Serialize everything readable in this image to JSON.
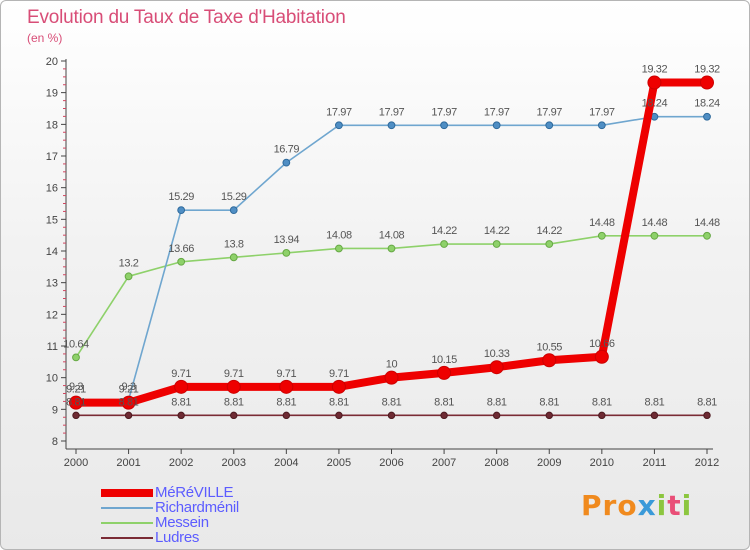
{
  "title": "Evolution du Taux de Taxe d'Habitation",
  "subtitle": "(en %)",
  "logo": {
    "text": "Proxiti",
    "letters": [
      "P",
      "r",
      "o",
      "x",
      "i",
      "t",
      "i"
    ],
    "colors": [
      "#f08a1e",
      "#f08a1e",
      "#f08a1e",
      "#3a9ad9",
      "#8cc63f",
      "#e94e77",
      "#8cc63f"
    ]
  },
  "chart_data": {
    "type": "line",
    "title": "Evolution du Taux de Taxe d'Habitation",
    "ylabel": "(en %)",
    "xlabel": "",
    "ylim": [
      8,
      20
    ],
    "yticks": [
      8,
      9,
      10,
      11,
      12,
      13,
      14,
      15,
      16,
      17,
      18,
      19,
      20
    ],
    "x": [
      2000,
      2001,
      2002,
      2003,
      2004,
      2005,
      2006,
      2007,
      2008,
      2009,
      2010,
      2011,
      2012
    ],
    "grid": false,
    "legend": "bottom-left",
    "series": [
      {
        "name": "Ludres",
        "color": "#7a2b35",
        "values": [
          8.81,
          8.81,
          8.81,
          8.81,
          8.81,
          8.81,
          8.81,
          8.81,
          8.81,
          8.81,
          8.81,
          8.81,
          8.81
        ]
      },
      {
        "name": "Messein",
        "color": "#8ed16a",
        "values": [
          10.64,
          13.2,
          13.66,
          13.8,
          13.94,
          14.08,
          14.08,
          14.22,
          14.22,
          14.22,
          14.48,
          14.48,
          14.48
        ]
      },
      {
        "name": "Richardménil",
        "color": "#6fa6cf",
        "values": [
          9.3,
          9.3,
          15.29,
          15.29,
          16.79,
          17.97,
          17.97,
          17.97,
          17.97,
          17.97,
          17.97,
          18.24,
          18.24
        ]
      },
      {
        "name": "MéRéVILLE",
        "color": "#ee0000",
        "values": [
          9.21,
          9.21,
          9.71,
          9.71,
          9.71,
          9.71,
          10,
          10.15,
          10.33,
          10.55,
          10.66,
          19.32,
          19.32
        ]
      }
    ],
    "data_labels": {
      "Ludres": [
        "8.81",
        "8.81",
        "8.81",
        "8.81",
        "8.81",
        "8.81",
        "8.81",
        "8.81",
        "8.81",
        "8.81",
        "8.81",
        "8.81",
        "8.81"
      ],
      "Messein": [
        "10.64",
        "13.2",
        "13.66",
        "13.8",
        "13.94",
        "14.08",
        "14.08",
        "14.22",
        "14.22",
        "14.22",
        "14.48",
        "14.48",
        "14.48"
      ],
      "Richardménil": [
        "9.3",
        "9.3",
        "15.29",
        "15.29",
        "16.79",
        "17.97",
        "17.97",
        "17.97",
        "17.97",
        "17.97",
        "17.97",
        "18.24",
        "18.24"
      ],
      "MéRéVILLE": [
        "9.21",
        "9.21",
        "9.71",
        "9.71",
        "9.71",
        "9.71",
        "10",
        "10.15",
        "10.33",
        "10.55",
        "10.66",
        "19.32",
        "19.32"
      ]
    }
  },
  "legend_order": [
    "MéRéVILLE",
    "Richardménil",
    "Messein",
    "Ludres"
  ]
}
